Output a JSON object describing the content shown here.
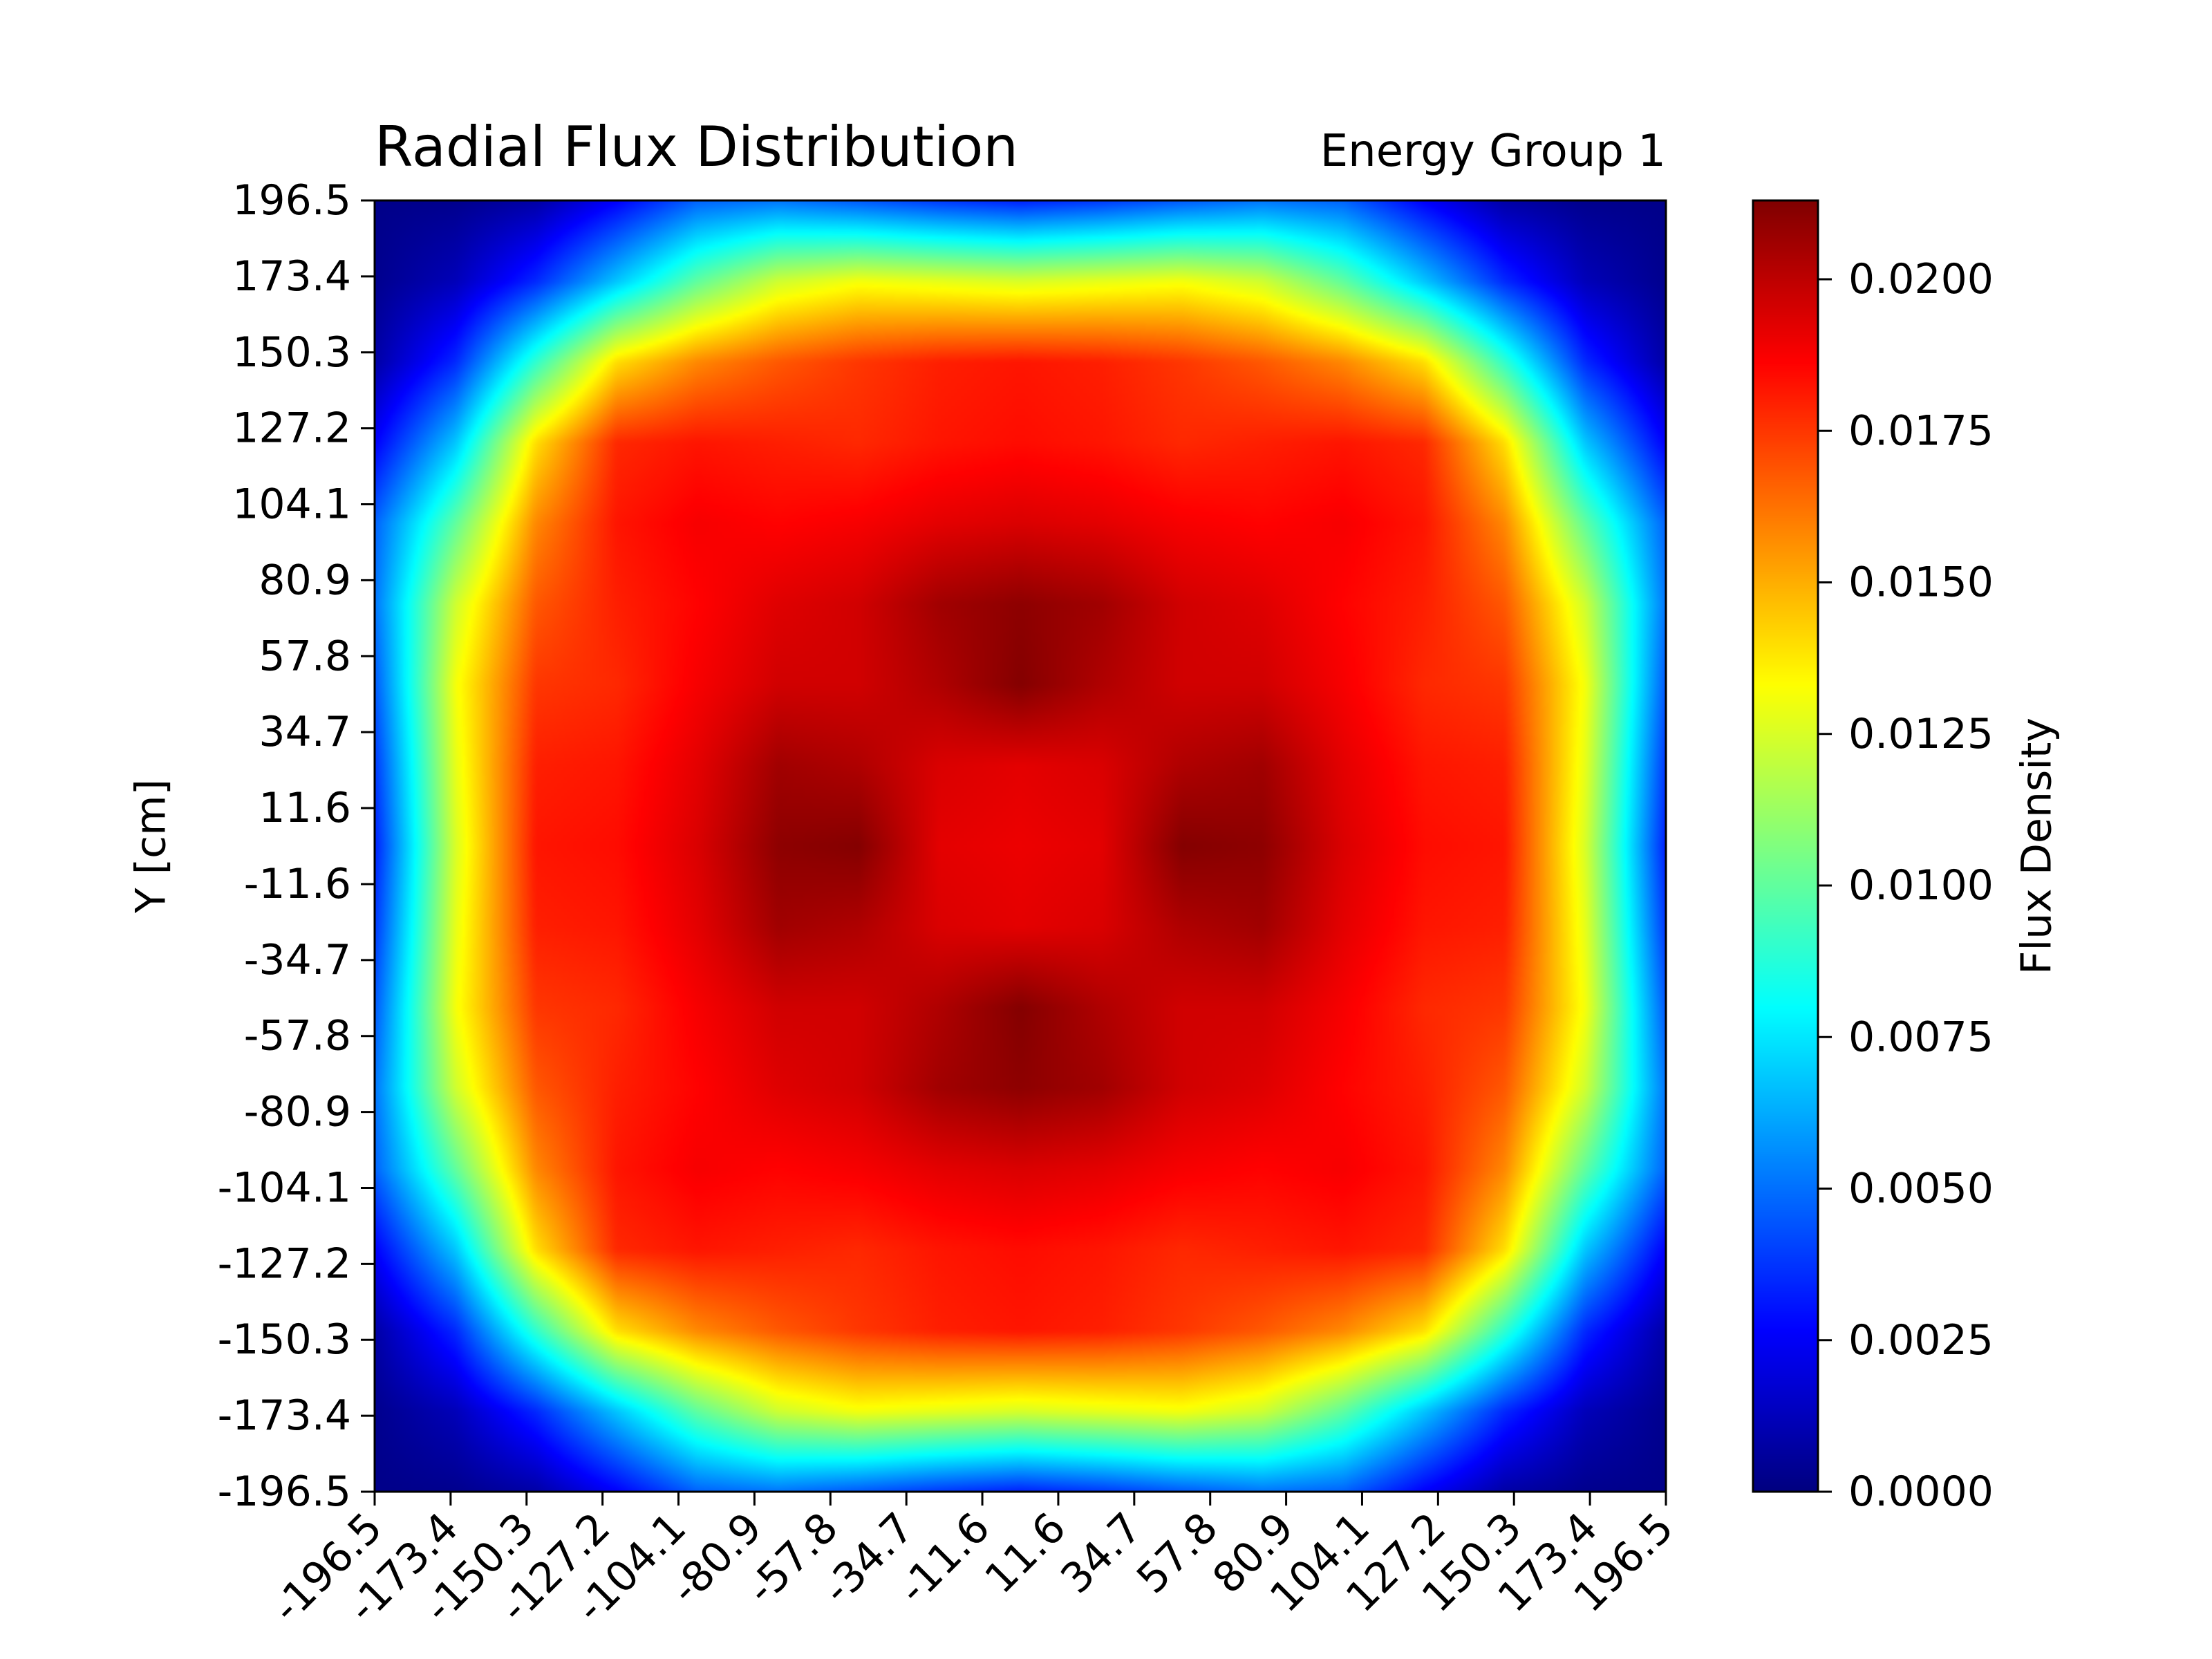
{
  "chart_data": {
    "type": "heatmap",
    "title": "Radial Flux Distribution",
    "subtitle": "Energy Group 1",
    "xlabel": "",
    "ylabel": "Y [cm]",
    "colorbar_label": "Flux Density",
    "colormap": "jet",
    "x_ticks": [
      "-196.5",
      "-173.4",
      "-150.3",
      "-127.2",
      "-104.1",
      "-80.9",
      "-57.8",
      "-34.7",
      "-11.6",
      "11.6",
      "34.7",
      "57.8",
      "80.9",
      "104.1",
      "127.2",
      "150.3",
      "173.4",
      "196.5"
    ],
    "y_ticks": [
      "196.5",
      "173.4",
      "150.3",
      "127.2",
      "104.1",
      "80.9",
      "57.8",
      "34.7",
      "11.6",
      "-11.6",
      "-34.7",
      "-57.8",
      "-80.9",
      "-104.1",
      "-127.2",
      "-150.3",
      "-173.4",
      "-196.5"
    ],
    "xlim": [
      -196.5,
      196.5
    ],
    "ylim": [
      -196.5,
      196.5
    ],
    "colorbar_ticks": [
      "0.0000",
      "0.0025",
      "0.0050",
      "0.0075",
      "0.0100",
      "0.0125",
      "0.0150",
      "0.0175",
      "0.0200"
    ],
    "clim": [
      0,
      0.0213
    ],
    "grid_values": [
      [
        0.0002,
        0.0003,
        0.0008,
        0.0026,
        0.0047,
        0.0051,
        0.0045,
        0.0038,
        0.0033,
        0.0038,
        0.0045,
        0.0051,
        0.0047,
        0.0026,
        0.0008,
        0.0003,
        0.0002
      ],
      [
        0.0003,
        0.0012,
        0.0035,
        0.0068,
        0.01,
        0.0123,
        0.0131,
        0.0128,
        0.0125,
        0.0128,
        0.0131,
        0.0123,
        0.01,
        0.0068,
        0.0035,
        0.0012,
        0.0003
      ],
      [
        0.0008,
        0.0035,
        0.009,
        0.014,
        0.0158,
        0.0168,
        0.0175,
        0.018,
        0.0182,
        0.018,
        0.0175,
        0.0168,
        0.0158,
        0.014,
        0.009,
        0.0035,
        0.0008
      ],
      [
        0.0026,
        0.0068,
        0.014,
        0.0178,
        0.0182,
        0.018,
        0.0178,
        0.0182,
        0.0184,
        0.0182,
        0.0178,
        0.018,
        0.0182,
        0.0178,
        0.014,
        0.0068,
        0.0026
      ],
      [
        0.0047,
        0.01,
        0.0158,
        0.0182,
        0.0188,
        0.0186,
        0.0188,
        0.0192,
        0.0194,
        0.0192,
        0.0188,
        0.0186,
        0.0188,
        0.0182,
        0.0158,
        0.01,
        0.0047
      ],
      [
        0.0051,
        0.0123,
        0.0168,
        0.018,
        0.0186,
        0.0193,
        0.0196,
        0.0206,
        0.021,
        0.0206,
        0.0196,
        0.0193,
        0.0186,
        0.018,
        0.0168,
        0.0123,
        0.0051
      ],
      [
        0.0045,
        0.0131,
        0.0175,
        0.0178,
        0.0188,
        0.0196,
        0.0196,
        0.0203,
        0.0212,
        0.0203,
        0.0196,
        0.0196,
        0.0188,
        0.0178,
        0.0175,
        0.0131,
        0.0045
      ],
      [
        0.0038,
        0.0128,
        0.018,
        0.0182,
        0.0192,
        0.0206,
        0.0203,
        0.0194,
        0.0192,
        0.0194,
        0.0203,
        0.0206,
        0.0192,
        0.0182,
        0.018,
        0.0128,
        0.0038
      ],
      [
        0.0033,
        0.0125,
        0.0182,
        0.0184,
        0.0194,
        0.021,
        0.0212,
        0.0192,
        0.019,
        0.0192,
        0.0212,
        0.021,
        0.0194,
        0.0184,
        0.0182,
        0.0125,
        0.0033
      ],
      [
        0.0038,
        0.0128,
        0.018,
        0.0182,
        0.0192,
        0.0206,
        0.0203,
        0.0194,
        0.0192,
        0.0194,
        0.0203,
        0.0206,
        0.0192,
        0.0182,
        0.018,
        0.0128,
        0.0038
      ],
      [
        0.0045,
        0.0131,
        0.0175,
        0.0178,
        0.0188,
        0.0196,
        0.0196,
        0.0203,
        0.0212,
        0.0203,
        0.0196,
        0.0196,
        0.0188,
        0.0178,
        0.0175,
        0.0131,
        0.0045
      ],
      [
        0.0051,
        0.0123,
        0.0168,
        0.018,
        0.0186,
        0.0193,
        0.0196,
        0.0206,
        0.021,
        0.0206,
        0.0196,
        0.0193,
        0.0186,
        0.018,
        0.0168,
        0.0123,
        0.0051
      ],
      [
        0.0047,
        0.01,
        0.0158,
        0.0182,
        0.0188,
        0.0186,
        0.0188,
        0.0192,
        0.0194,
        0.0192,
        0.0188,
        0.0186,
        0.0188,
        0.0182,
        0.0158,
        0.01,
        0.0047
      ],
      [
        0.0026,
        0.0068,
        0.014,
        0.0178,
        0.0182,
        0.018,
        0.0178,
        0.0182,
        0.0184,
        0.0182,
        0.0178,
        0.018,
        0.0182,
        0.0178,
        0.014,
        0.0068,
        0.0026
      ],
      [
        0.0008,
        0.0035,
        0.009,
        0.014,
        0.0158,
        0.0168,
        0.0175,
        0.018,
        0.0182,
        0.018,
        0.0175,
        0.0168,
        0.0158,
        0.014,
        0.009,
        0.0035,
        0.0008
      ],
      [
        0.0003,
        0.0012,
        0.0035,
        0.0068,
        0.01,
        0.0123,
        0.0131,
        0.0128,
        0.0125,
        0.0128,
        0.0131,
        0.0123,
        0.01,
        0.0068,
        0.0035,
        0.0012,
        0.0003
      ],
      [
        0.0002,
        0.0003,
        0.0008,
        0.0026,
        0.0047,
        0.0051,
        0.0045,
        0.0038,
        0.0033,
        0.0038,
        0.0045,
        0.0051,
        0.0047,
        0.0026,
        0.0008,
        0.0003,
        0.0002
      ]
    ]
  }
}
